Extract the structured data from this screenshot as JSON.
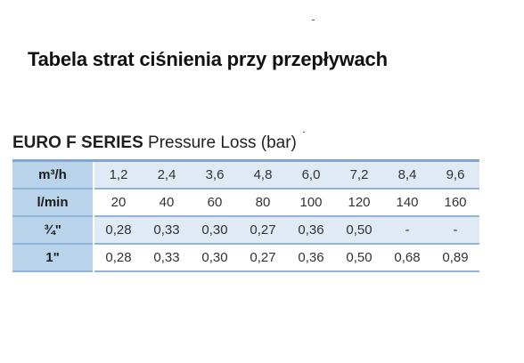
{
  "heading": "Tabela strat ciśnienia przy przepływach",
  "table_title": {
    "bold_part": "EURO F SERIES",
    "rest": "Pressure Loss (bar)"
  },
  "table": {
    "rows": [
      {
        "label": "m³/h",
        "values": [
          "1,2",
          "2,4",
          "3,6",
          "4,8",
          "6,0",
          "7,2",
          "8,4",
          "9,6"
        ]
      },
      {
        "label": "l/min",
        "values": [
          "20",
          "40",
          "60",
          "80",
          "100",
          "120",
          "140",
          "160"
        ]
      },
      {
        "label": "¾\"",
        "values": [
          "0,28",
          "0,33",
          "0,30",
          "0,27",
          "0,36",
          "0,50",
          "-",
          "-"
        ]
      },
      {
        "label": "1\"",
        "values": [
          "0,28",
          "0,33",
          "0,30",
          "0,27",
          "0,36",
          "0,50",
          "0,68",
          "0,89"
        ]
      }
    ]
  }
}
